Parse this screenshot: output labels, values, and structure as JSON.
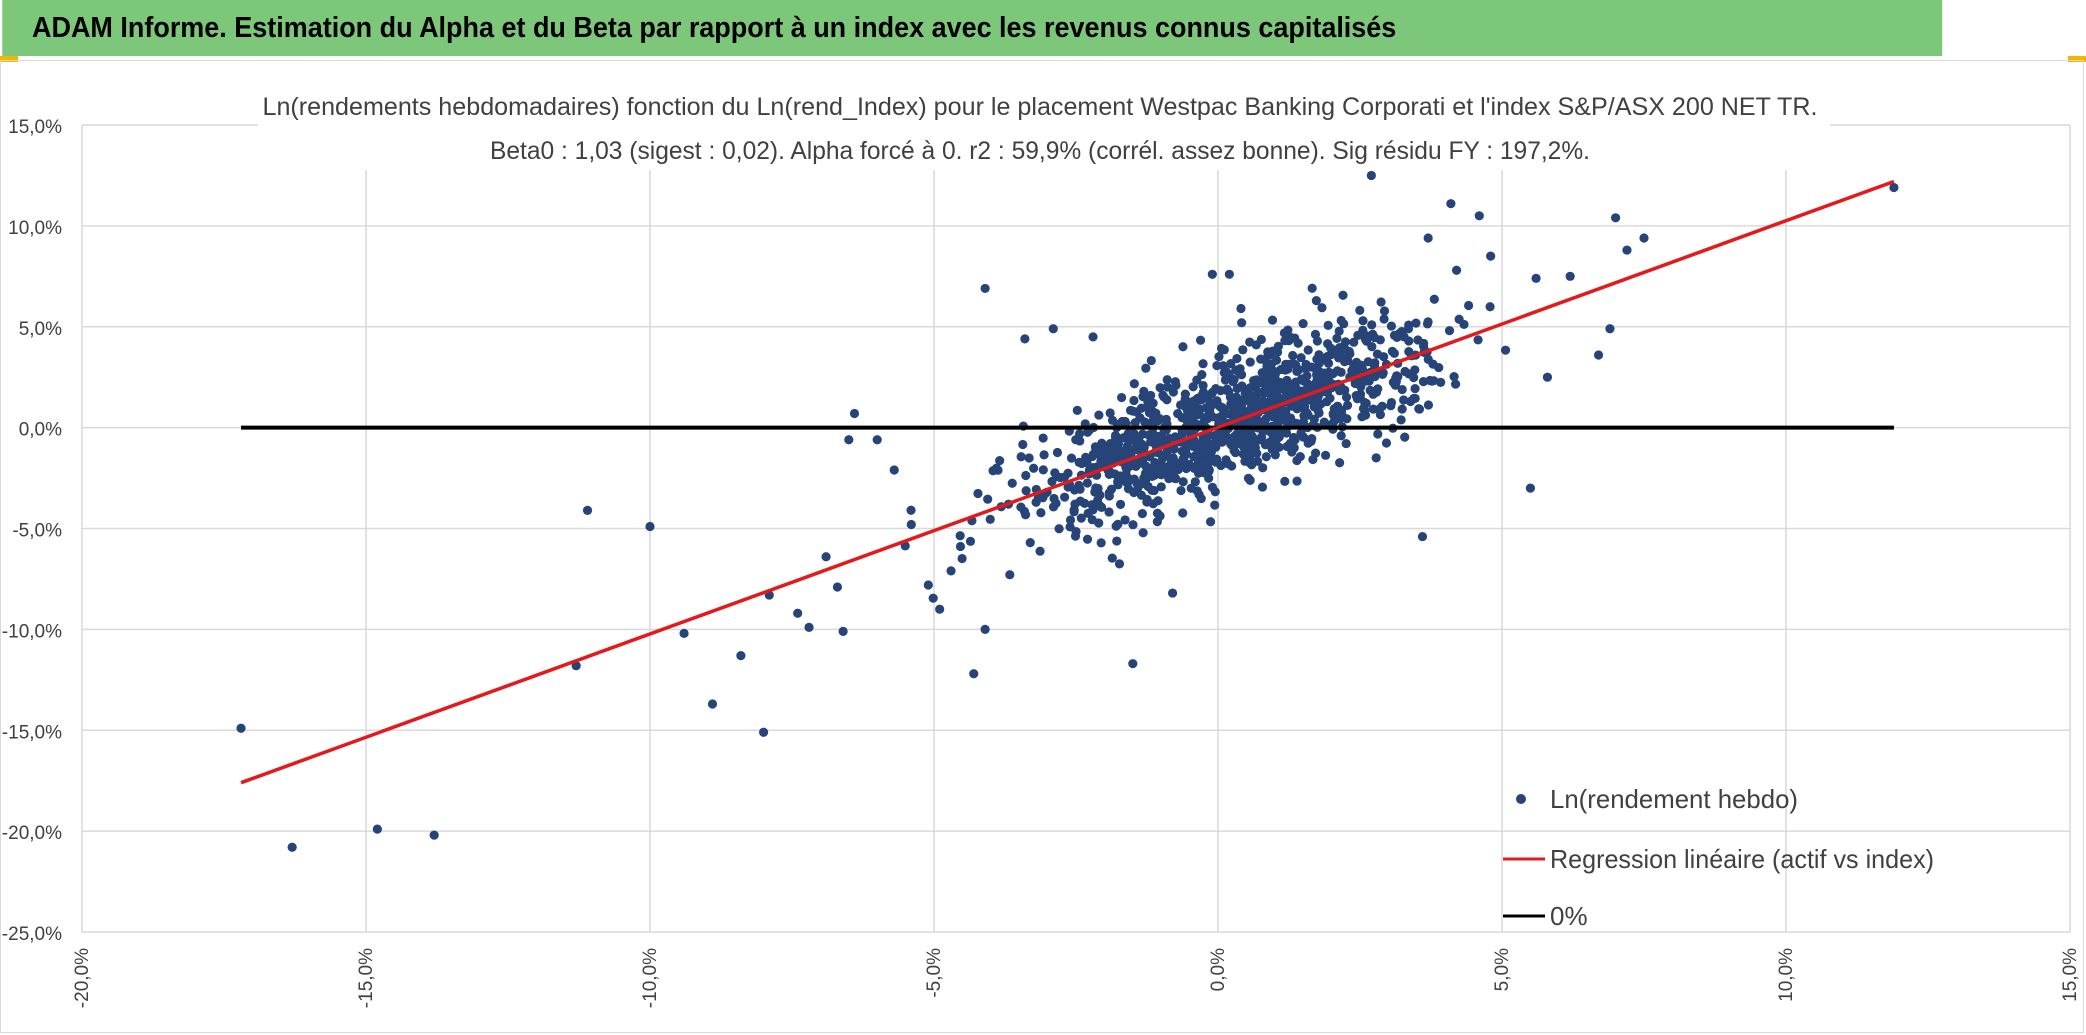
{
  "header": {
    "title": "ADAM Informe. Estimation du Alpha et du Beta par rapport à un index avec les revenus connus capitalisés"
  },
  "colors": {
    "banner": "#7dc77b",
    "points": "#264478",
    "regression": "#e31a1c",
    "zero_line": "#000000",
    "grid": "#d9d9d9"
  },
  "chart_data": {
    "type": "scatter",
    "title": "Ln(rendements hebdomadaires) fonction du Ln(rend_Index) pour le placement Westpac Banking Corporati et l'index S&P/ASX 200 NET TR.",
    "subtitle": "Beta0 : 1,03 (sigest : 0,02). Alpha forcé à 0. r2 : 59,9% (corrél. assez bonne). Sig résidu FY : 197,2%.",
    "xlabel": "",
    "ylabel": "",
    "xlim": [
      -0.2,
      0.15
    ],
    "ylim": [
      -0.25,
      0.15
    ],
    "x_ticks": [
      -0.2,
      -0.15,
      -0.1,
      -0.05,
      0.0,
      0.05,
      0.1,
      0.15
    ],
    "y_ticks": [
      0.15,
      0.1,
      0.05,
      0.0,
      -0.05,
      -0.1,
      -0.15,
      -0.2,
      -0.25
    ],
    "x_tick_labels": [
      "-20,0%",
      "-15,0%",
      "-10,0%",
      "-5,0%",
      "0,0%",
      "5,0%",
      "10,0%",
      "15,0%"
    ],
    "y_tick_labels": [
      "15,0%",
      "10,0%",
      "5,0%",
      "0,0%",
      "-5,0%",
      "-10,0%",
      "-15,0%",
      "-20,0%",
      "-25,0%"
    ],
    "grid": true,
    "legend_position": "bottom-right",
    "legend": [
      "Ln(rendement hebdo)",
      "Regression linéaire (actif vs index)",
      "0%"
    ],
    "beta": 1.03,
    "series": [
      {
        "name": "Ln(rendement hebdo)",
        "kind": "scatter",
        "points": [
          [
            -0.172,
            -0.149
          ],
          [
            -0.163,
            -0.208
          ],
          [
            -0.148,
            -0.199
          ],
          [
            -0.138,
            -0.202
          ],
          [
            -0.113,
            -0.118
          ],
          [
            -0.111,
            -0.041
          ],
          [
            -0.1,
            -0.049
          ],
          [
            -0.094,
            -0.102
          ],
          [
            -0.089,
            -0.137
          ],
          [
            -0.084,
            -0.113
          ],
          [
            -0.08,
            -0.151
          ],
          [
            -0.079,
            -0.083
          ],
          [
            -0.074,
            -0.092
          ],
          [
            -0.072,
            -0.099
          ],
          [
            -0.069,
            -0.064
          ],
          [
            -0.067,
            -0.079
          ],
          [
            -0.066,
            -0.101
          ],
          [
            -0.065,
            -0.006
          ],
          [
            -0.064,
            0.007
          ],
          [
            -0.06,
            -0.006
          ],
          [
            -0.057,
            -0.021
          ],
          [
            -0.054,
            -0.048
          ],
          [
            -0.051,
            -0.078
          ],
          [
            -0.049,
            -0.09
          ],
          [
            -0.047,
            -0.071
          ],
          [
            -0.043,
            -0.122
          ],
          [
            -0.041,
            -0.1
          ],
          [
            -0.041,
            0.069
          ],
          [
            -0.034,
            0.044
          ],
          [
            -0.029,
            0.049
          ],
          [
            -0.022,
            0.045
          ],
          [
            -0.015,
            -0.117
          ],
          [
            -0.008,
            -0.082
          ],
          [
            0.027,
            0.125
          ],
          [
            0.041,
            0.111
          ],
          [
            0.046,
            0.105
          ],
          [
            0.055,
            -0.03
          ],
          [
            0.036,
            -0.054
          ],
          [
            0.062,
            0.075
          ],
          [
            0.067,
            0.036
          ],
          [
            0.069,
            0.049
          ],
          [
            0.07,
            0.104
          ],
          [
            0.072,
            0.088
          ],
          [
            0.075,
            0.094
          ],
          [
            0.119,
            0.119
          ],
          [
            0.048,
            0.085
          ],
          [
            0.042,
            0.078
          ],
          [
            0.037,
            0.094
          ],
          [
            -0.001,
            0.076
          ],
          [
            0.002,
            0.076
          ],
          [
            0.056,
            0.074
          ],
          [
            0.058,
            0.025
          ]
        ],
        "cluster": {
          "count": 1100,
          "x_mean": 0.002,
          "x_sd": 0.017,
          "beta": 1.03,
          "residual_sd": 0.016,
          "seed": 7
        }
      },
      {
        "name": "Regression linéaire (actif vs index)",
        "kind": "line",
        "x": [
          -0.172,
          0.119
        ],
        "y": [
          -0.176,
          0.122
        ]
      },
      {
        "name": "0%",
        "kind": "line",
        "x": [
          -0.172,
          0.119
        ],
        "y": [
          0.0,
          0.0
        ]
      }
    ]
  }
}
